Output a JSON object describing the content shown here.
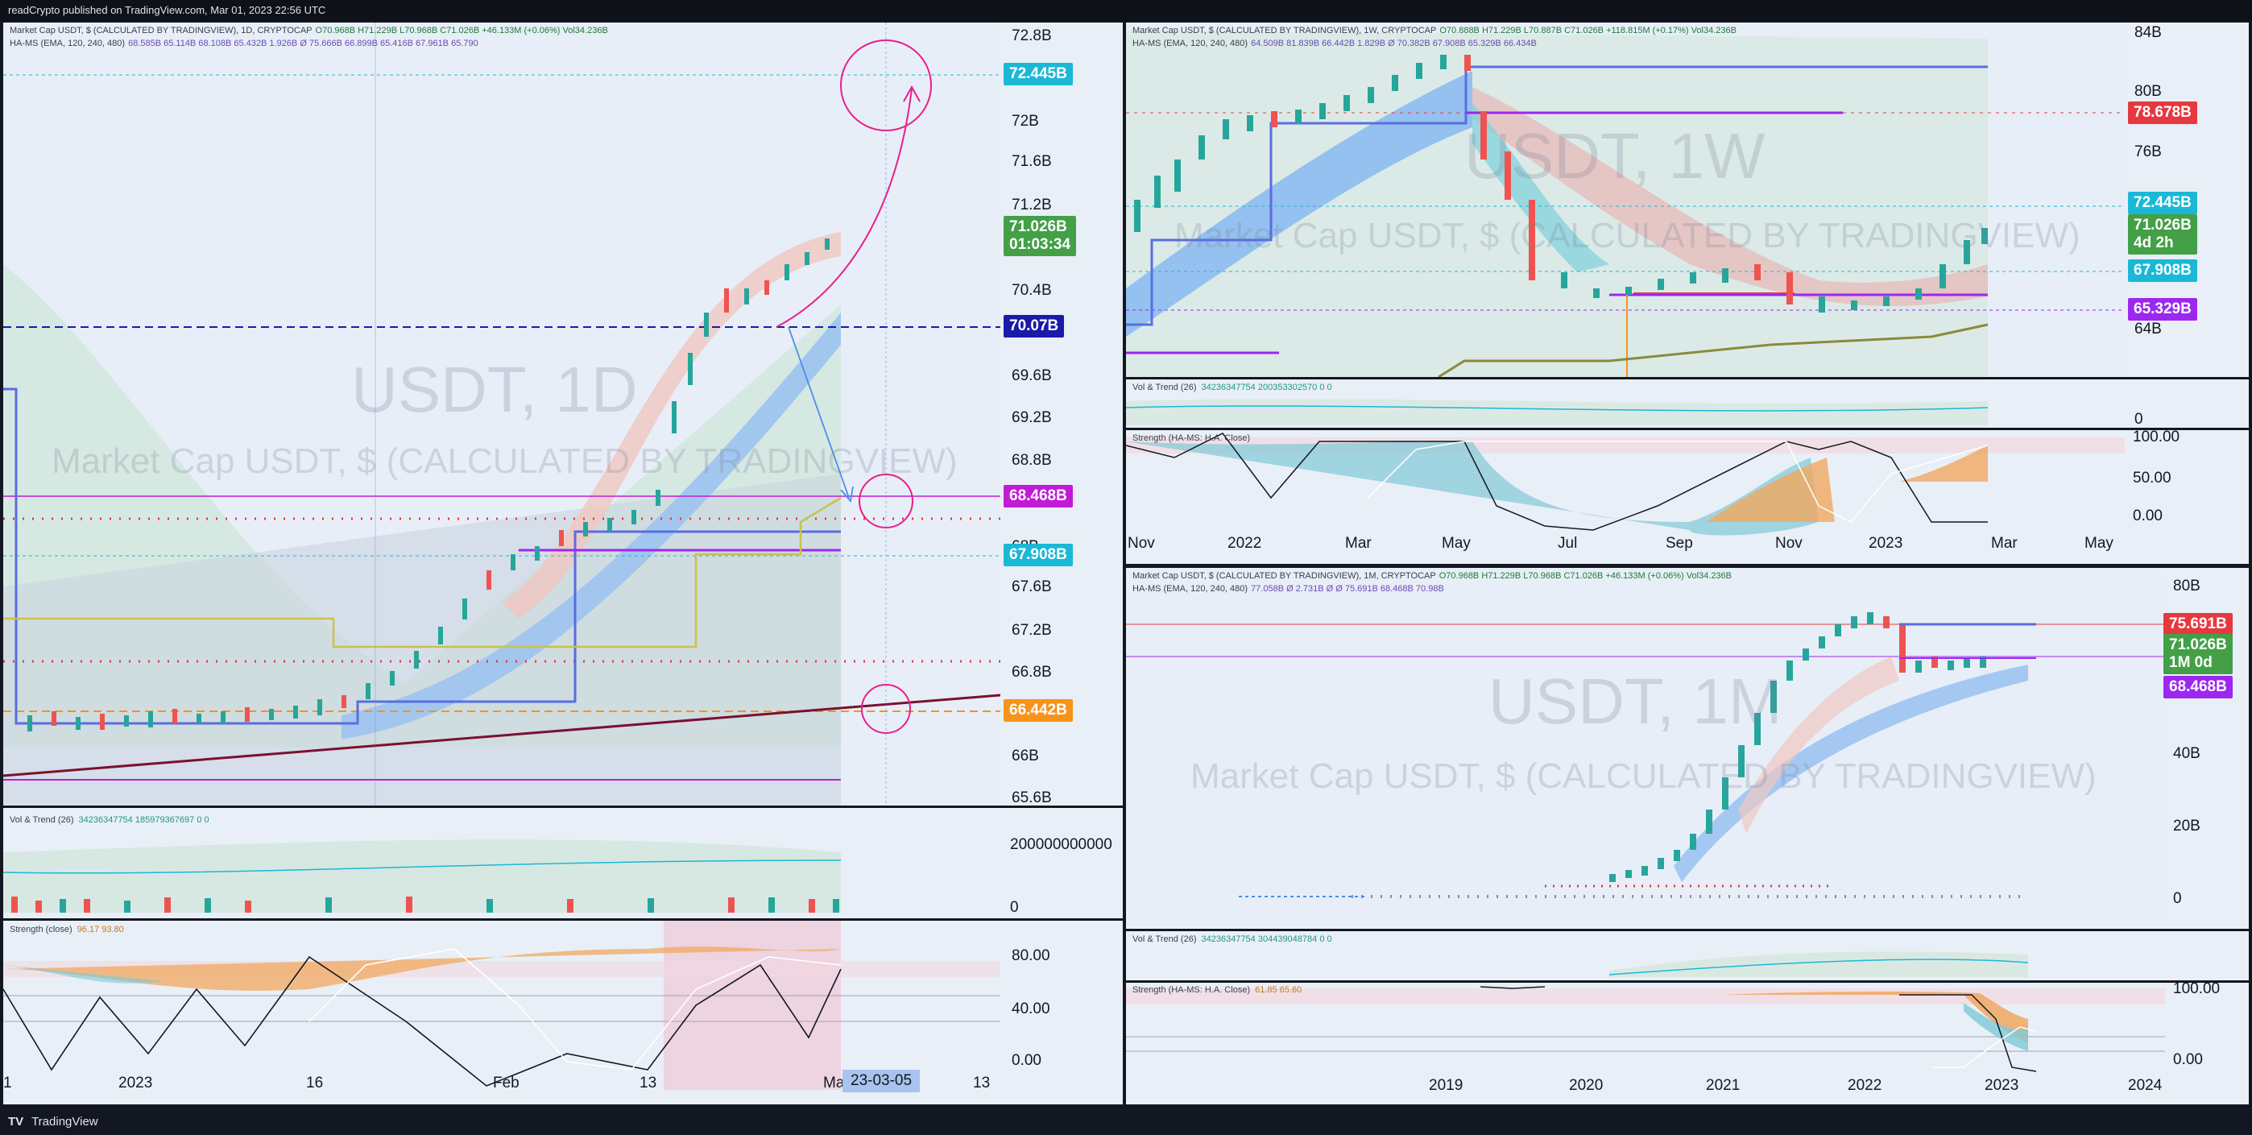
{
  "topbar": {
    "text": "readCrypto published on TradingView.com, Mar 01, 2023 22:56 UTC"
  },
  "bottombar": {
    "logo": "TV",
    "brand": "TradingView"
  },
  "panel_1d": {
    "legend1": "Market Cap USDT, $ (CALCULATED BY TRADINGVIEW), 1D, CRYPTOCAP",
    "legend1_vals": "O70.968B  H71.229B  L70.968B  C71.026B  +46.133M (+0.06%)  Vol34.236B",
    "legend2": "HA-MS (EMA, 120, 240, 480)",
    "legend2_vals": "68.585B  65.114B  68.108B  65.432B  1.926B  Ø  75.666B  66.899B  65.416B  67.961B  65.790",
    "watermark_big": "USDT, 1D",
    "watermark_small": "Market Cap USDT, $ (CALCULATED BY TRADINGVIEW)",
    "price_axis": [
      "72.8B",
      "72B",
      "71.6B",
      "71.2B",
      "70.4B",
      "69.6B",
      "69.2B",
      "68.8B",
      "68B",
      "67.6B",
      "67.2B",
      "66.8B",
      "66B",
      "65.6B"
    ],
    "badges": {
      "b1": "72.445B",
      "b2": "71.026B",
      "b2_time": "01:03:34",
      "b3": "70.07B",
      "b4": "68.468B",
      "b5": "67.908B",
      "b6": "66.442B"
    },
    "vol_legend": "Vol & Trend (26)",
    "vol_vals": "34236347754  185979367697  0  0",
    "vol_axis": [
      "200000000000",
      "0"
    ],
    "strength_legend": "Strength (close)",
    "strength_vals": "96.17  93.80",
    "strength_axis": [
      "80.00",
      "40.00",
      "0.00"
    ],
    "time_axis": [
      "1",
      "2023",
      "16",
      "Feb",
      "13",
      "Ma",
      "13"
    ],
    "cursor_date": "23-03-05"
  },
  "panel_1w": {
    "legend1": "Market Cap USDT, $ (CALCULATED BY TRADINGVIEW), 1W, CRYPTOCAP",
    "legend1_vals": "O70.888B  H71.229B  L70.887B  C71.026B  +118.815M (+0.17%)  Vol34.236B",
    "legend2": "HA-MS (EMA, 120, 240, 480)",
    "legend2_vals": "64.509B  81.839B  66.442B  1.829B  Ø  70.382B  67.908B  65.329B  66.434B",
    "watermark_big": "USDT, 1W",
    "watermark_small": "Market Cap USDT, $ (CALCULATED BY TRADINGVIEW)",
    "price_axis": [
      "84B",
      "80B",
      "76B",
      "64B",
      "0"
    ],
    "badges": {
      "b1": "78.678B",
      "b2": "72.445B",
      "b3": "71.026B",
      "b3_time": "4d 2h",
      "b4": "67.908B",
      "b5": "65.329B"
    },
    "vol_legend": "Vol & Trend (26)",
    "vol_vals": "34236347754  200353302570  0  0",
    "strength_legend": "Strength (HA-MS: H.A. Close)",
    "strength_axis": [
      "100.00",
      "50.00",
      "0.00"
    ],
    "time_axis": [
      "Nov",
      "2022",
      "Mar",
      "May",
      "Jul",
      "Sep",
      "Nov",
      "2023",
      "Mar",
      "May"
    ]
  },
  "panel_1m": {
    "legend1": "Market Cap USDT, $ (CALCULATED BY TRADINGVIEW), 1M, CRYPTOCAP",
    "legend1_vals": "O70.968B  H71.229B  L70.968B  C71.026B  +46.133M (+0.06%)  Vol34.236B",
    "legend2": "HA-MS (EMA, 120, 240, 480)",
    "legend2_vals": "77.058B  Ø  2.731B  Ø  Ø  75.691B  68.468B  70.98B",
    "watermark_big": "USDT, 1M",
    "watermark_small": "Market Cap USDT, $ (CALCULATED BY TRADINGVIEW)",
    "price_axis": [
      "80B",
      "40B",
      "20B",
      "0"
    ],
    "badges": {
      "b1": "75.691B",
      "b2": "71.026B",
      "b2_time": "1M 0d",
      "b3": "68.468B"
    },
    "vol_legend": "Vol & Trend (26)",
    "vol_vals": "34236347754  304439048784  0  0",
    "strength_legend": "Strength (HA-MS: H.A. Close)",
    "strength_vals": "61.85  65.60",
    "strength_axis": [
      "100.00",
      "0.00"
    ],
    "time_axis": [
      "2019",
      "2020",
      "2021",
      "2022",
      "2023",
      "2024"
    ]
  },
  "colors": {
    "bg_dark": "#131722",
    "panel_bg": "#e9eff7",
    "cyan": "#1bb8d6",
    "green": "#43a047",
    "navy": "#1a1aaa",
    "magenta": "#c21bd6",
    "orange": "#f7931a",
    "red": "#e5393f",
    "purple": "#9c27f0"
  }
}
